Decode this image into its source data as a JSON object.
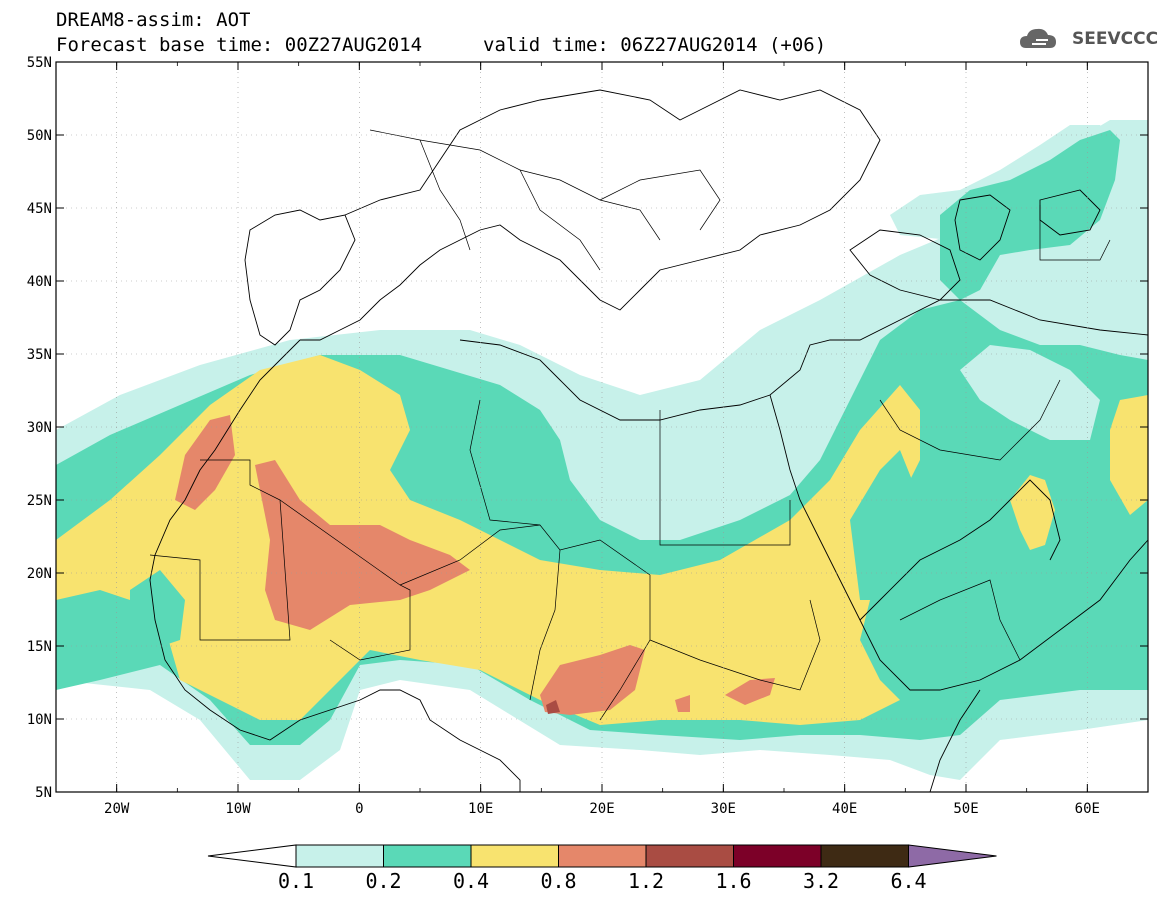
{
  "header": {
    "title_line1": "DREAM8-assim: AOT",
    "title_line2": "Forecast base time: 00Z27AUG2014",
    "valid_time": "valid time: 06Z27AUG2014 (+06)",
    "logo_text": "SEEVCCC"
  },
  "map": {
    "lon_range": [
      -25,
      65
    ],
    "lat_range": [
      5,
      55
    ],
    "lon_labels": [
      "20W",
      "10W",
      "0",
      "10E",
      "20E",
      "30E",
      "40E",
      "50E",
      "60E"
    ],
    "lat_labels": [
      "55N",
      "50N",
      "45N",
      "40N",
      "35N",
      "30N",
      "25N",
      "20N",
      "15N",
      "10N",
      "5N"
    ]
  },
  "colorbar": {
    "labels": [
      "0.1",
      "0.2",
      "0.4",
      "0.8",
      "1.2",
      "1.6",
      "3.2",
      "6.4"
    ],
    "colors": [
      "#c7f1ea",
      "#5ad9b7",
      "#f8e36f",
      "#e5876a",
      "#a94c43",
      "#7c0028",
      "#3e2a14",
      "#8e6aa6"
    ],
    "below_color": "#ffffff"
  }
}
